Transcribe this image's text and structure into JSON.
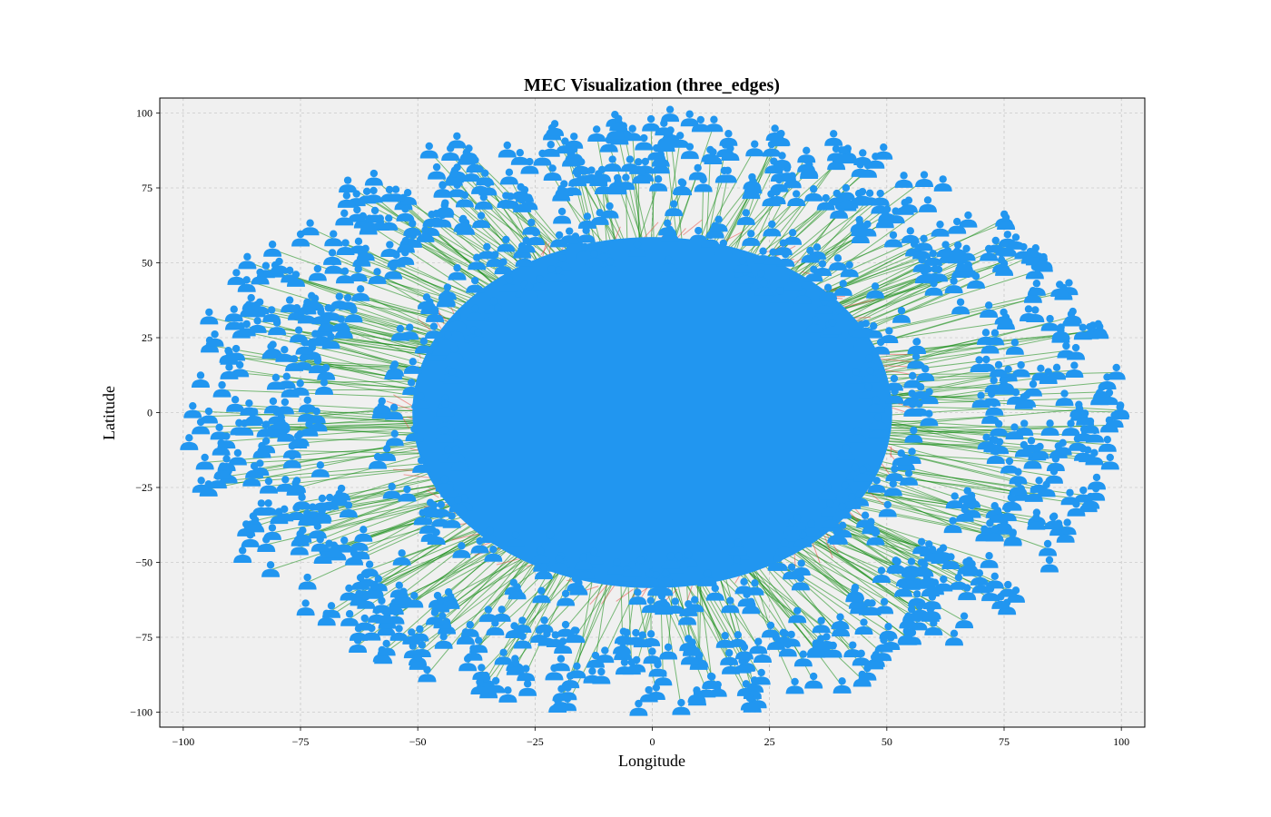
{
  "chart_data": {
    "type": "scatter",
    "title": "MEC Visualization (three_edges)",
    "xlabel": "Longitude",
    "ylabel": "Latitude",
    "xlim": [
      -105,
      105
    ],
    "ylim": [
      -105,
      105
    ],
    "xticks": [
      -100,
      -75,
      -50,
      -25,
      0,
      25,
      50,
      75,
      100
    ],
    "yticks": [
      -100,
      -75,
      -50,
      -25,
      0,
      25,
      50,
      75,
      100
    ],
    "xtick_labels": [
      "−100",
      "−75",
      "−50",
      "−25",
      "0",
      "25",
      "50",
      "75",
      "100"
    ],
    "ytick_labels": [
      "−100",
      "−75",
      "−50",
      "−25",
      "0",
      "25",
      "50",
      "75",
      "100"
    ],
    "grid": true,
    "grid_style": "dashed",
    "legend": "none",
    "background_color": "#f0f0f0",
    "colors": {
      "user_marker": "#2196f0",
      "edge_link": "#138a13",
      "overload_link": "#e8413a"
    },
    "marker_icon": "person-icon",
    "series": [
      {
        "role": "user devices",
        "distribution": "ring",
        "center": [
          0,
          0
        ],
        "radius_x": [
          70,
          100
        ],
        "radius_y": [
          75,
          100
        ]
      },
      {
        "role": "edge servers",
        "distribution": "ellipse",
        "center": [
          0,
          0
        ],
        "radius_x": 55,
        "radius_y": 63
      },
      {
        "role": "edge links",
        "from": "user devices",
        "to": "edge servers",
        "color": "#138a13"
      }
    ]
  }
}
